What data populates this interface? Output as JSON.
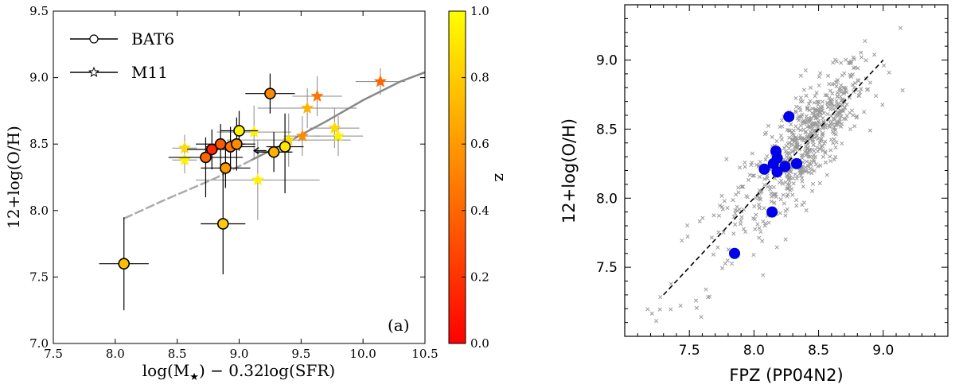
{
  "chart_data": [
    {
      "panel_label": "(a)",
      "type": "scatter",
      "xlabel": "log(M★) − 0.32log(SFR)",
      "ylabel": "12+log(O/H)",
      "xlim": [
        7.5,
        10.5
      ],
      "ylim": [
        7.0,
        9.5
      ],
      "xticks": [
        "7.5",
        "8.0",
        "8.5",
        "9.0",
        "9.5",
        "10.0",
        "10.5"
      ],
      "yticks": [
        "7.0",
        "7.5",
        "8.0",
        "8.5",
        "9.0",
        "9.5"
      ],
      "legend": [
        {
          "label": "BAT6",
          "marker": "circle"
        },
        {
          "label": "M11",
          "marker": "star"
        }
      ],
      "colorbar": {
        "label": "z",
        "min": 0.0,
        "max": 1.0,
        "ticks": [
          "0.0",
          "0.2",
          "0.4",
          "0.6",
          "0.8",
          "1.0"
        ]
      },
      "fmr_curve": [
        [
          8.07,
          7.94
        ],
        [
          8.4,
          8.08
        ],
        [
          8.8,
          8.24
        ],
        [
          9.1,
          8.38
        ],
        [
          9.4,
          8.52
        ],
        [
          9.7,
          8.67
        ],
        [
          10.0,
          8.83
        ],
        [
          10.3,
          8.97
        ],
        [
          10.5,
          9.04
        ]
      ],
      "bat6": [
        {
          "x": 8.07,
          "y": 7.6,
          "xerr": 0.2,
          "yerr_lo": 0.35,
          "yerr_hi": 0.35,
          "z": 0.75
        },
        {
          "x": 8.87,
          "y": 7.9,
          "xerr": 0.18,
          "yerr_lo": 0.38,
          "yerr_hi": 0.45,
          "z": 0.8
        },
        {
          "x": 8.73,
          "y": 8.4,
          "xerr": 0.3,
          "yerr_lo": 0.3,
          "yerr_hi": 0.15,
          "z": 0.4
        },
        {
          "x": 8.78,
          "y": 8.46,
          "xerr": 0.2,
          "yerr_lo": 0.15,
          "yerr_hi": 0.15,
          "z": 0.15
        },
        {
          "x": 8.85,
          "y": 8.5,
          "xerr": 0.2,
          "yerr_lo": 0.2,
          "yerr_hi": 0.15,
          "z": 0.35
        },
        {
          "x": 8.93,
          "y": 8.48,
          "xerr": 0.2,
          "yerr_lo": 0.15,
          "yerr_hi": 0.15,
          "z": 0.45
        },
        {
          "x": 8.98,
          "y": 8.5,
          "xerr": 0.15,
          "yerr_lo": 0.2,
          "yerr_hi": 0.2,
          "z": 0.55
        },
        {
          "x": 9.0,
          "y": 8.6,
          "xerr": 0.15,
          "yerr_lo": 0.15,
          "yerr_hi": 0.15,
          "z": 0.95
        },
        {
          "x": 8.89,
          "y": 8.32,
          "xerr": 0.2,
          "yerr_lo": 0.15,
          "yerr_hi": 0.2,
          "z": 0.6
        },
        {
          "x": 9.25,
          "y": 8.88,
          "xerr": 0.2,
          "yerr_lo": 0.15,
          "yerr_hi": 0.15,
          "z": 0.55
        },
        {
          "x": 9.28,
          "y": 8.44,
          "xerr": 0.15,
          "yerr_lo": 0.15,
          "yerr_hi": 0.15,
          "z": 0.7
        },
        {
          "x": 9.37,
          "y": 8.48,
          "xerr": 0.15,
          "yerr_lo": 0.35,
          "yerr_hi": 0.25,
          "z": 0.9
        }
      ],
      "bat6_upper_limit_arrow": {
        "x": 9.22,
        "y": 8.45,
        "to_x": 9.12
      },
      "m11": [
        {
          "x": 8.56,
          "y": 8.47,
          "xerr": 0.1,
          "yerr": 0.1,
          "z": 0.85
        },
        {
          "x": 8.56,
          "y": 8.38,
          "xerr": 0.1,
          "yerr": 0.1,
          "z": 0.95
        },
        {
          "x": 9.12,
          "y": 8.59,
          "xerr": 0.3,
          "yerr": 0.2,
          "z": 0.95
        },
        {
          "x": 9.15,
          "y": 8.23,
          "xerr": 0.5,
          "yerr": 0.3,
          "z": 0.95
        },
        {
          "x": 9.4,
          "y": 8.53,
          "xerr": 0.5,
          "yerr": 0.2,
          "z": 0.85
        },
        {
          "x": 9.51,
          "y": 8.56,
          "xerr": 0.15,
          "yerr": 0.15,
          "z": 0.55
        },
        {
          "x": 9.55,
          "y": 8.77,
          "xerr": 0.4,
          "yerr": 0.15,
          "z": 0.7
        },
        {
          "x": 9.63,
          "y": 8.86,
          "xerr": 0.2,
          "yerr": 0.15,
          "z": 0.45
        },
        {
          "x": 9.77,
          "y": 8.62,
          "xerr": 0.2,
          "yerr": 0.15,
          "z": 0.85
        },
        {
          "x": 9.8,
          "y": 8.56,
          "xerr": 0.2,
          "yerr": 0.15,
          "z": 0.95
        },
        {
          "x": 10.14,
          "y": 8.97,
          "xerr": 0.2,
          "yerr": 0.1,
          "z": 0.4
        }
      ]
    },
    {
      "type": "scatter",
      "xlabel": "FPZ (PP04N2)",
      "ylabel": "12+log(O/H)",
      "xlim": [
        7.0,
        9.5
      ],
      "ylim": [
        7.0,
        9.4
      ],
      "xticks": [
        "7.5",
        "8.0",
        "8.5",
        "9.0"
      ],
      "yticks": [
        "7.5",
        "8.0",
        "8.5",
        "9.0"
      ],
      "one_to_one_line": [
        [
          7.3,
          7.3
        ],
        [
          9.0,
          9.0
        ]
      ],
      "blue_points": [
        {
          "x": 7.85,
          "y": 7.6
        },
        {
          "x": 8.14,
          "y": 7.9
        },
        {
          "x": 8.08,
          "y": 8.21
        },
        {
          "x": 8.15,
          "y": 8.25
        },
        {
          "x": 8.18,
          "y": 8.29
        },
        {
          "x": 8.17,
          "y": 8.34
        },
        {
          "x": 8.18,
          "y": 8.19
        },
        {
          "x": 8.24,
          "y": 8.23
        },
        {
          "x": 8.27,
          "y": 8.59
        },
        {
          "x": 8.33,
          "y": 8.25
        }
      ],
      "background_points": "about 700 grey cross markers scattered around the 1:1 line, densest near (8.4, 8.4)"
    }
  ]
}
